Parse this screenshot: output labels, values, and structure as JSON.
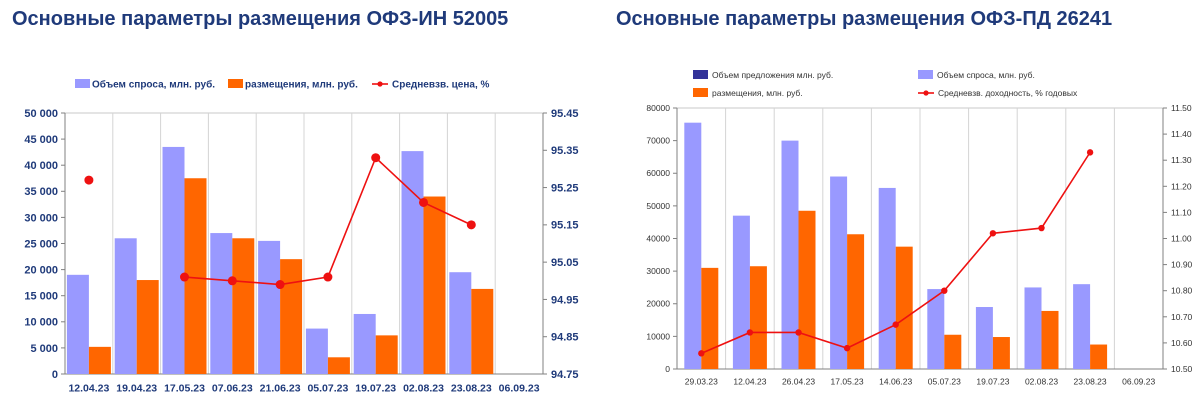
{
  "chart_data": [
    {
      "type": "bar",
      "title": "Основные параметры размещения ОФЗ-ИН 52005",
      "categories": [
        "12.04.23",
        "19.04.23",
        "17.05.23",
        "07.06.23",
        "21.06.23",
        "05.07.23",
        "19.07.23",
        "02.08.23",
        "23.08.23",
        "06.09.23"
      ],
      "series": [
        {
          "name": "Объем спроса, млн. руб.",
          "kind": "bar",
          "axis": "left",
          "color": "#9999ff",
          "values": [
            19000,
            26000,
            43500,
            27000,
            25500,
            8700,
            11500,
            42700,
            19500,
            null
          ]
        },
        {
          "name": "размещения, млн. руб.",
          "kind": "bar",
          "axis": "left",
          "color": "#ff6600",
          "values": [
            5200,
            18000,
            37500,
            26000,
            22000,
            3200,
            7400,
            34000,
            16300,
            null
          ]
        },
        {
          "name": "Средневзв. цена, %",
          "kind": "line",
          "axis": "right",
          "color": "#ee1111",
          "values": [
            95.27,
            null,
            95.01,
            95.0,
            94.99,
            95.01,
            95.33,
            95.21,
            95.15,
            null
          ]
        }
      ],
      "y_left": {
        "min": 0,
        "max": 50000,
        "step": 5000,
        "ticks": [
          "0",
          "5 000",
          "10 000",
          "15 000",
          "20 000",
          "25 000",
          "30 000",
          "35 000",
          "40 000",
          "45 000",
          "50 000"
        ]
      },
      "y_right": {
        "min": 94.75,
        "max": 95.45,
        "step": 0.1,
        "ticks": [
          "94.75",
          "94.85",
          "94.95",
          "95.05",
          "95.15",
          "95.25",
          "95.35",
          "95.45"
        ]
      },
      "grid": "vertical",
      "legend": "top"
    },
    {
      "type": "bar",
      "title": "Основные параметры размещения ОФЗ-ПД 26241",
      "categories": [
        "29.03.23",
        "12.04.23",
        "26.04.23",
        "17.05.23",
        "14.06.23",
        "05.07.23",
        "19.07.23",
        "02.08.23",
        "23.08.23",
        "06.09.23"
      ],
      "series": [
        {
          "name": "Объем предложения млн. руб.",
          "kind": "bar",
          "axis": "left",
          "color": "#333399",
          "values": [
            null,
            null,
            null,
            null,
            null,
            null,
            null,
            null,
            null,
            null
          ]
        },
        {
          "name": "Объем спроса, млн. руб.",
          "kind": "bar",
          "axis": "left",
          "color": "#9999ff",
          "values": [
            75500,
            47000,
            70000,
            59000,
            55500,
            24500,
            19000,
            25000,
            26000,
            null
          ]
        },
        {
          "name": "размещения, млн. руб.",
          "kind": "bar",
          "axis": "left",
          "color": "#ff6600",
          "values": [
            31000,
            31500,
            48500,
            41300,
            37500,
            10500,
            9800,
            17800,
            7500,
            null
          ]
        },
        {
          "name": "Средневзв. доходность, % годовых",
          "kind": "line",
          "axis": "right",
          "color": "#ee1111",
          "values": [
            10.56,
            10.64,
            10.64,
            10.58,
            10.67,
            10.8,
            11.02,
            11.04,
            11.33,
            null
          ]
        }
      ],
      "y_left": {
        "min": 0,
        "max": 80000,
        "step": 10000,
        "ticks": [
          "0",
          "10000",
          "20000",
          "30000",
          "40000",
          "50000",
          "60000",
          "70000",
          "80000"
        ]
      },
      "y_right": {
        "min": 10.5,
        "max": 11.5,
        "step": 0.1,
        "ticks": [
          "10.50",
          "10.60",
          "10.70",
          "10.80",
          "10.90",
          "11.00",
          "11.10",
          "11.20",
          "11.30",
          "11.40",
          "11.50"
        ]
      },
      "grid": "vertical",
      "legend": "top"
    }
  ]
}
